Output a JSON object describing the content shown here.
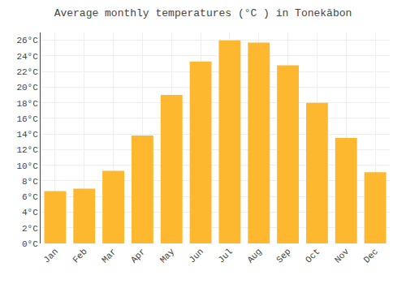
{
  "chart_data": {
    "type": "bar",
    "title": "Average monthly temperatures (°C ) in Tonekābon",
    "categories": [
      "Jan",
      "Feb",
      "Mar",
      "Apr",
      "May",
      "Jun",
      "Jul",
      "Aug",
      "Sep",
      "Oct",
      "Nov",
      "Dec"
    ],
    "values": [
      6.7,
      7.0,
      9.3,
      13.8,
      19.0,
      23.3,
      26.0,
      25.7,
      22.8,
      18.0,
      13.5,
      9.1
    ],
    "color": "#FDB830",
    "ylim": [
      0,
      27
    ],
    "yticks": [
      {
        "value": 0,
        "label": "0°C"
      },
      {
        "value": 2,
        "label": "2°C"
      },
      {
        "value": 4,
        "label": "4°C"
      },
      {
        "value": 6,
        "label": "6°C"
      },
      {
        "value": 8,
        "label": "8°C"
      },
      {
        "value": 10,
        "label": "10°C"
      },
      {
        "value": 12,
        "label": "12°C"
      },
      {
        "value": 14,
        "label": "14°C"
      },
      {
        "value": 16,
        "label": "16°C"
      },
      {
        "value": 18,
        "label": "18°C"
      },
      {
        "value": 20,
        "label": "20°C"
      },
      {
        "value": 22,
        "label": "22°C"
      },
      {
        "value": 24,
        "label": "24°C"
      },
      {
        "value": 26,
        "label": "26°C"
      }
    ],
    "grid": true
  }
}
